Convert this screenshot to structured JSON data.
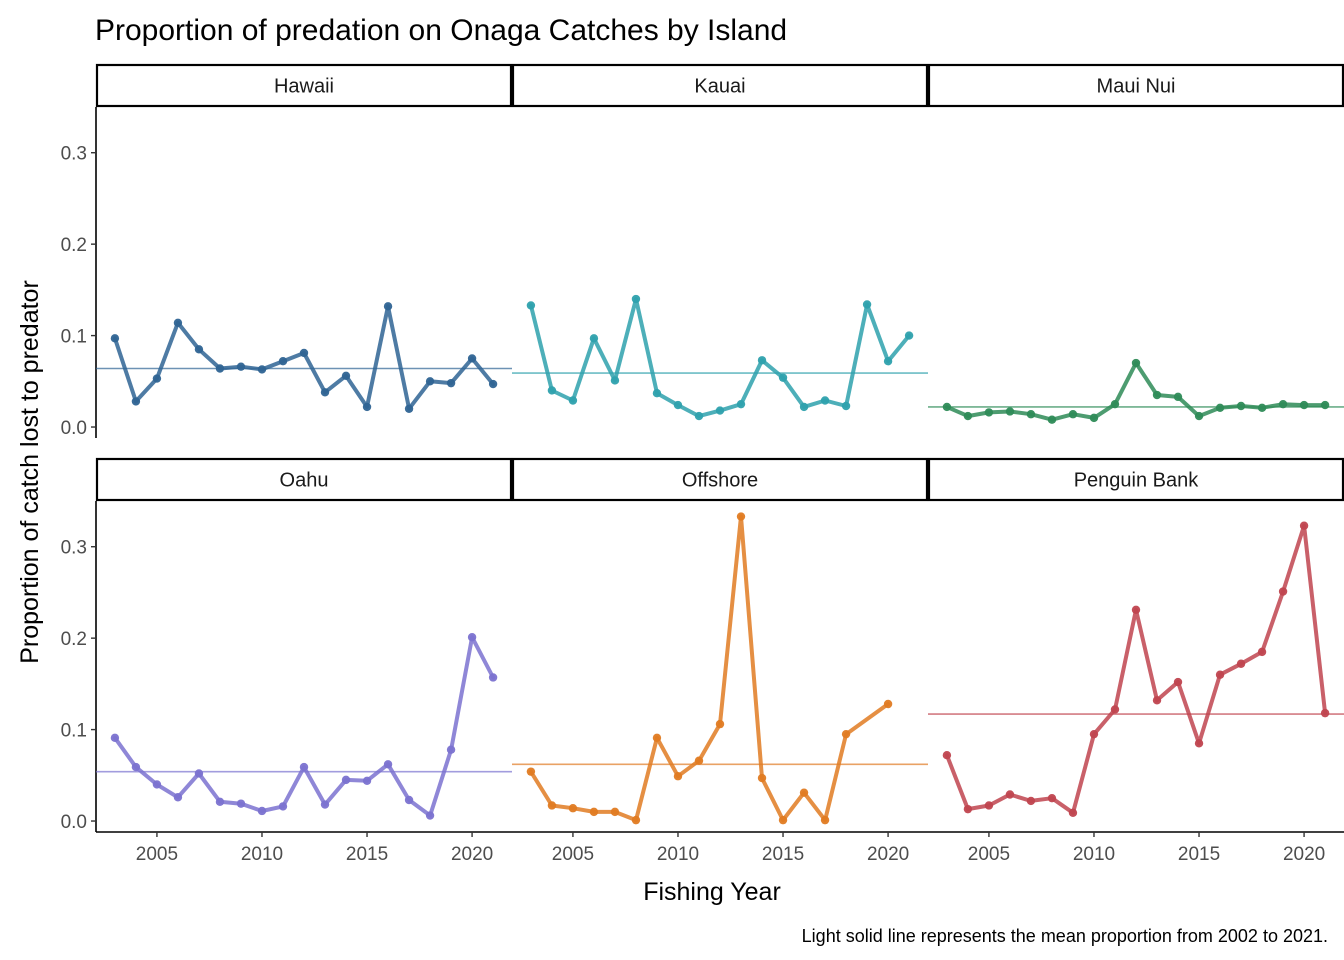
{
  "chart_data": {
    "type": "line",
    "title": "Proportion of predation on Onaga Catches by Island",
    "xlabel": "Fishing Year",
    "ylabel": "Proportion of catch lost to predator",
    "caption": "Light solid line represents the mean proportion from 2002 to 2021.",
    "xlim": [
      2002.1,
      2021.9
    ],
    "ylim": [
      -0.012,
      0.35
    ],
    "x_ticks": [
      2005,
      2010,
      2015,
      2020
    ],
    "x_tick_labels": [
      "2005",
      "2010",
      "2015",
      "2020"
    ],
    "y_ticks": [
      0.0,
      0.1,
      0.2,
      0.3
    ],
    "y_tick_labels": [
      "0.0",
      "0.1",
      "0.2",
      "0.3"
    ],
    "grid": false,
    "panels": [
      {
        "name": "Hawaii",
        "color": "#2f6494",
        "mean": 0.064,
        "x": [
          2003,
          2004,
          2005,
          2006,
          2007,
          2008,
          2009,
          2010,
          2011,
          2012,
          2013,
          2014,
          2015,
          2016,
          2017,
          2018,
          2019,
          2020,
          2021
        ],
        "y": [
          0.097,
          0.028,
          0.053,
          0.114,
          0.085,
          0.064,
          0.066,
          0.063,
          0.072,
          0.081,
          0.038,
          0.056,
          0.022,
          0.132,
          0.02,
          0.05,
          0.048,
          0.075,
          0.047
        ]
      },
      {
        "name": "Kauai",
        "color": "#2ea1ad",
        "mean": 0.059,
        "x": [
          2003,
          2004,
          2005,
          2006,
          2007,
          2008,
          2009,
          2010,
          2011,
          2012,
          2013,
          2014,
          2015,
          2016,
          2017,
          2018,
          2019,
          2020,
          2021
        ],
        "y": [
          0.133,
          0.04,
          0.029,
          0.097,
          0.051,
          0.14,
          0.037,
          0.024,
          0.012,
          0.018,
          0.025,
          0.073,
          0.054,
          0.022,
          0.029,
          0.023,
          0.134,
          0.072,
          0.1
        ]
      },
      {
        "name": "Maui Nui",
        "color": "#2e8b57",
        "mean": 0.022,
        "x": [
          2003,
          2004,
          2005,
          2006,
          2007,
          2008,
          2009,
          2010,
          2011,
          2012,
          2013,
          2014,
          2015,
          2016,
          2017,
          2018,
          2019,
          2020,
          2021
        ],
        "y": [
          0.022,
          0.012,
          0.016,
          0.017,
          0.014,
          0.008,
          0.014,
          0.01,
          0.025,
          0.07,
          0.035,
          0.033,
          0.012,
          0.021,
          0.023,
          0.021,
          0.025,
          0.024,
          0.024
        ]
      },
      {
        "name": "Oahu",
        "color": "#7b72d0",
        "mean": 0.054,
        "x": [
          2003,
          2004,
          2005,
          2006,
          2007,
          2008,
          2009,
          2010,
          2011,
          2012,
          2013,
          2014,
          2015,
          2016,
          2017,
          2018,
          2019,
          2020,
          2021
        ],
        "y": [
          0.091,
          0.059,
          0.04,
          0.026,
          0.052,
          0.021,
          0.019,
          0.011,
          0.016,
          0.059,
          0.018,
          0.045,
          0.044,
          0.062,
          0.023,
          0.006,
          0.078,
          0.201,
          0.157
        ]
      },
      {
        "name": "Offshore",
        "color": "#e07b22",
        "mean": 0.062,
        "x": [
          2003,
          2004,
          2005,
          2006,
          2007,
          2008,
          2009,
          2010,
          2011,
          2012,
          2013,
          2014,
          2015,
          2016,
          2017,
          2018,
          2020
        ],
        "y": [
          0.054,
          0.017,
          0.014,
          0.01,
          0.01,
          0.001,
          0.091,
          0.049,
          0.066,
          0.106,
          0.333,
          0.047,
          0.001,
          0.031,
          0.001,
          0.095,
          0.128
        ]
      },
      {
        "name": "Penguin Bank",
        "color": "#c0444f",
        "mean": 0.117,
        "x": [
          2003,
          2004,
          2005,
          2006,
          2007,
          2008,
          2009,
          2010,
          2011,
          2012,
          2013,
          2014,
          2015,
          2016,
          2017,
          2018,
          2019,
          2020,
          2021
        ],
        "y": [
          0.072,
          0.013,
          0.017,
          0.029,
          0.022,
          0.025,
          0.009,
          0.095,
          0.122,
          0.231,
          0.132,
          0.152,
          0.085,
          0.16,
          0.172,
          0.185,
          0.251,
          0.323,
          0.118
        ]
      }
    ]
  }
}
